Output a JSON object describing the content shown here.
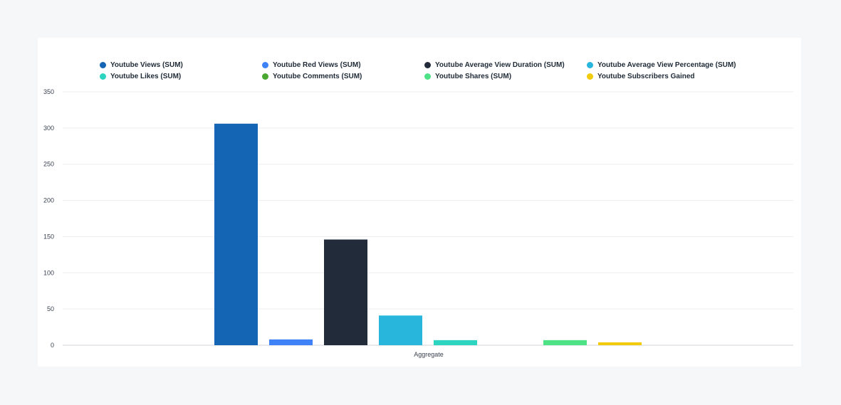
{
  "chart_data": {
    "type": "bar",
    "categories": [
      "Aggregate"
    ],
    "series": [
      {
        "name": "Youtube Views (SUM)",
        "values": [
          306
        ],
        "color": "#1565b5"
      },
      {
        "name": "Youtube Red Views (SUM)",
        "values": [
          8
        ],
        "color": "#3f82f7"
      },
      {
        "name": "Youtube Average View Duration (SUM)",
        "values": [
          146
        ],
        "color": "#212b3a"
      },
      {
        "name": "Youtube Average View Percentage (SUM)",
        "values": [
          41
        ],
        "color": "#28b6dc"
      },
      {
        "name": "Youtube Likes (SUM)",
        "values": [
          7
        ],
        "color": "#2dd4bf"
      },
      {
        "name": "Youtube Comments (SUM)",
        "values": [
          0
        ],
        "color": "#4aa832"
      },
      {
        "name": "Youtube Shares (SUM)",
        "values": [
          7
        ],
        "color": "#4ee286"
      },
      {
        "name": "Youtube Subscribers Gained",
        "values": [
          4
        ],
        "color": "#f2cc0c"
      }
    ],
    "title": "",
    "xlabel": "",
    "ylabel": "",
    "ylim": [
      0,
      350
    ],
    "yticks": [
      "0",
      "50",
      "100",
      "150",
      "200",
      "250",
      "300",
      "350"
    ],
    "grid": true,
    "legend_position": "top"
  }
}
